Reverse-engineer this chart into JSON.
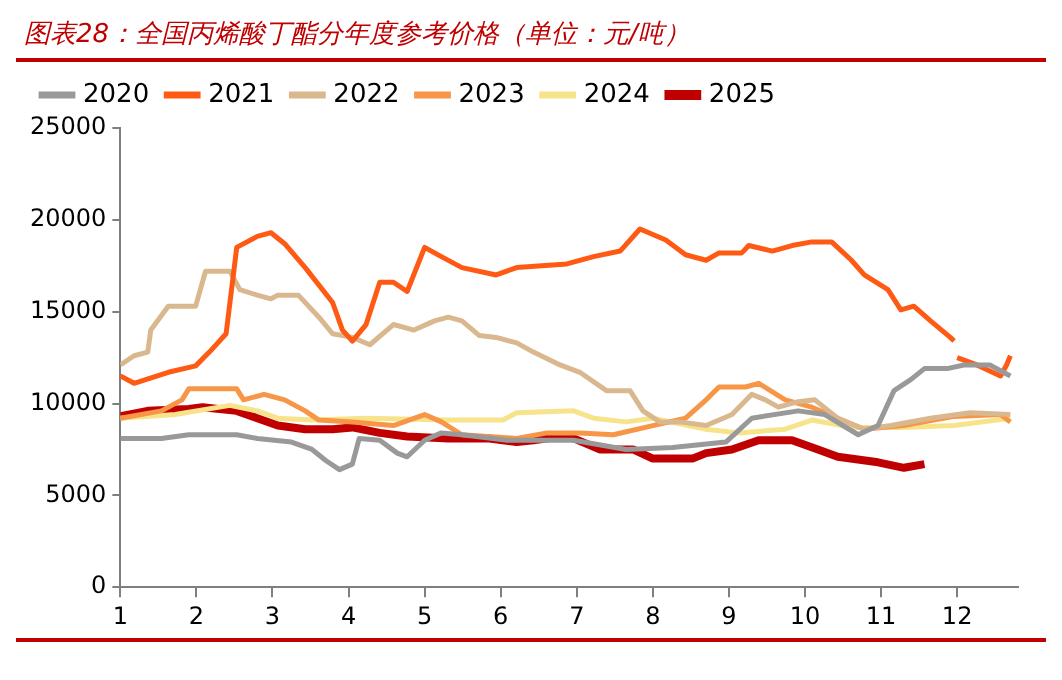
{
  "chart_data": {
    "type": "line",
    "title": "图表28：全国丙烯酸丁酯分年度参考价格（单位：元/吨）",
    "xlim": [
      1,
      12.8
    ],
    "xticks": [
      1,
      2,
      3,
      4,
      5,
      6,
      7,
      8,
      9,
      10,
      11,
      12
    ],
    "ylim": [
      0,
      25000
    ],
    "yticks": [
      0,
      5000,
      10000,
      15000,
      20000,
      25000
    ],
    "grid": false,
    "legend": "top",
    "marker": "none",
    "line_style": "solid",
    "series": [
      {
        "name": "2020",
        "color": "#999999",
        "x": [
          1.0,
          1.54,
          1.9,
          2.53,
          2.8,
          3.25,
          3.52,
          3.7,
          3.88,
          4.05,
          4.14,
          4.41,
          4.64,
          4.77,
          5.0,
          5.22,
          5.49,
          6.09,
          6.96,
          7.65,
          8.26,
          8.96,
          9.3,
          9.91,
          10.26,
          10.7,
          10.96,
          11.17,
          11.39,
          11.57,
          11.87,
          12.09,
          12.43,
          12.7
        ],
        "values": [
          8100,
          8100,
          8300,
          8300,
          8100,
          7900,
          7500,
          6900,
          6400,
          6700,
          8100,
          8000,
          7300,
          7100,
          8000,
          8400,
          8300,
          8000,
          8000,
          7500,
          7600,
          7900,
          9200,
          9600,
          9400,
          8300,
          8800,
          10700,
          11300,
          11900,
          11900,
          12100,
          12100,
          11500
        ]
      },
      {
        "name": "2021",
        "color": "#ff5a14",
        "x": [
          1.0,
          1.18,
          1.63,
          1.99,
          2.17,
          2.39,
          2.53,
          2.8,
          2.98,
          3.16,
          3.43,
          3.79,
          3.92,
          4.05,
          4.23,
          4.41,
          4.59,
          4.77,
          5.0,
          5.22,
          5.49,
          5.94,
          6.21,
          6.87,
          7.22,
          7.57,
          7.83,
          8.17,
          8.43,
          8.7,
          8.87,
          9.17,
          9.26,
          9.57,
          9.83,
          10.09,
          10.35,
          10.61,
          10.78,
          11.09,
          11.26,
          11.43,
          11.65,
          11.91,
          11.96,
          11.98,
          12.0,
          12.26,
          12.57,
          12.65,
          12.7
        ],
        "values": [
          11500,
          11100,
          11700,
          12050,
          12800,
          13800,
          18500,
          19100,
          19300,
          18700,
          17400,
          15500,
          14000,
          13400,
          14300,
          16600,
          16600,
          16100,
          18500,
          18000,
          17400,
          17000,
          17400,
          17600,
          18000,
          18300,
          19500,
          18900,
          18100,
          17800,
          18200,
          18200,
          18600,
          18300,
          18600,
          18800,
          18800,
          17800,
          17000,
          16200,
          15100,
          15300,
          14500,
          13600,
          13400,
          null,
          12500,
          12100,
          11500,
          12100,
          12600
        ]
      },
      {
        "name": "2022",
        "color": "#d9b88f",
        "x": [
          1.0,
          1.18,
          1.36,
          1.4,
          1.63,
          1.99,
          2.12,
          2.44,
          2.57,
          2.8,
          2.98,
          3.07,
          3.34,
          3.61,
          3.79,
          4.05,
          4.28,
          4.59,
          4.86,
          5.13,
          5.31,
          5.49,
          5.72,
          5.94,
          6.21,
          6.43,
          6.78,
          7.04,
          7.39,
          7.7,
          7.87,
          8.09,
          8.35,
          8.7,
          9.04,
          9.3,
          9.48,
          9.65,
          9.91,
          10.13,
          10.43,
          10.78,
          11.13,
          11.65,
          12.17,
          12.7
        ],
        "values": [
          12100,
          12600,
          12800,
          14000,
          15300,
          15300,
          17200,
          17200,
          16200,
          15900,
          15700,
          15900,
          15900,
          14700,
          13800,
          13600,
          13200,
          14300,
          14000,
          14500,
          14700,
          14500,
          13700,
          13600,
          13300,
          12800,
          12100,
          11700,
          10700,
          10700,
          9600,
          9000,
          9000,
          8800,
          9400,
          10500,
          10200,
          9800,
          10100,
          10200,
          9200,
          8600,
          8800,
          9200,
          9500,
          9400
        ]
      },
      {
        "name": "2023",
        "color": "#f79646",
        "x": [
          1.0,
          1.54,
          1.81,
          1.9,
          2.53,
          2.62,
          2.89,
          3.16,
          3.43,
          3.61,
          4.05,
          4.59,
          5.0,
          5.22,
          5.49,
          6.21,
          6.61,
          7.04,
          7.48,
          8.0,
          8.43,
          8.7,
          8.87,
          9.22,
          9.39,
          9.74,
          10.09,
          10.43,
          10.78,
          11.3,
          11.96,
          12.57,
          12.7
        ],
        "values": [
          9200,
          9600,
          10200,
          10800,
          10800,
          10200,
          10500,
          10200,
          9600,
          9100,
          9000,
          8800,
          9400,
          9000,
          8300,
          8100,
          8400,
          8400,
          8300,
          8800,
          9200,
          10200,
          10900,
          10900,
          11100,
          10200,
          9800,
          9200,
          8600,
          8800,
          9300,
          9400,
          9000
        ]
      },
      {
        "name": "2024",
        "color": "#f7e48a",
        "x": [
          1.0,
          1.72,
          2.44,
          2.8,
          3.07,
          3.52,
          4.23,
          5.31,
          6.03,
          6.21,
          6.96,
          7.22,
          7.65,
          8.0,
          8.7,
          9.13,
          9.74,
          10.09,
          10.61,
          11.3,
          11.96,
          12.7
        ],
        "values": [
          9200,
          9400,
          9900,
          9600,
          9200,
          9100,
          9200,
          9100,
          9100,
          9500,
          9600,
          9200,
          9000,
          9200,
          8600,
          8400,
          8600,
          9100,
          8700,
          8700,
          8800,
          9200
        ]
      },
      {
        "name": "2025",
        "color": "#c00000",
        "x": [
          1.0,
          1.36,
          1.9,
          2.08,
          2.53,
          2.8,
          3.07,
          3.43,
          3.79,
          4.05,
          4.41,
          4.77,
          5.31,
          5.85,
          6.21,
          6.43,
          6.78,
          6.96,
          7.3,
          7.74,
          8.0,
          8.52,
          8.7,
          9.04,
          9.39,
          9.83,
          10.17,
          10.43,
          10.96,
          11.3,
          11.57
        ],
        "values": [
          9300,
          9600,
          9700,
          9800,
          9600,
          9200,
          8800,
          8600,
          8600,
          8700,
          8400,
          8200,
          8100,
          8100,
          7900,
          8000,
          8200,
          8100,
          7500,
          7500,
          7000,
          7000,
          7300,
          7500,
          8000,
          8000,
          7500,
          7100,
          6800,
          6500,
          6700
        ]
      }
    ]
  }
}
